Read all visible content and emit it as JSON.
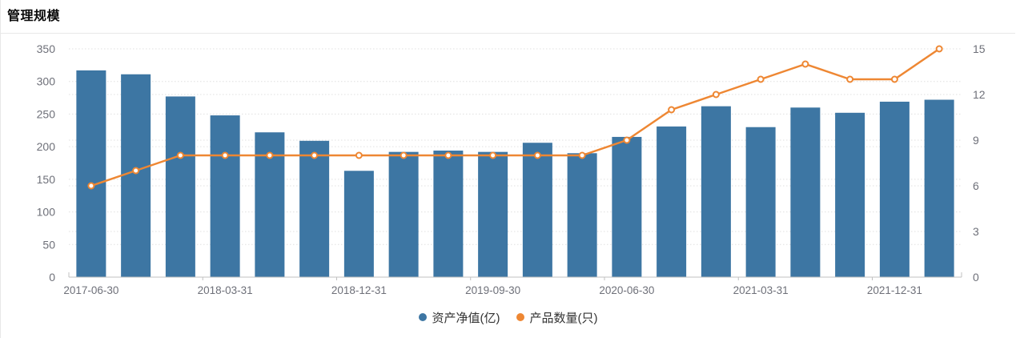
{
  "title": "管理规模",
  "colors": {
    "bar": "#3d76a3",
    "line": "#ee8733",
    "marker_core": "#ffffff",
    "grid": "#e0e0e0",
    "axis_line": "#c0c0c0",
    "tick_label": "#6e7079",
    "title_text": "#0a0a0a",
    "divider": "#e8e8e8",
    "legend_text": "#333333"
  },
  "legend": {
    "items": [
      {
        "label": "资产净值(亿)",
        "color": "#3d76a3",
        "icon": "circle-dot-icon"
      },
      {
        "label": "产品数量(只)",
        "color": "#ee8733",
        "icon": "circle-dot-icon"
      }
    ],
    "position": "bottom-center"
  },
  "chart_data": {
    "type": "bar",
    "subtype": "bar+line dual y-axis combo",
    "title": "管理规模",
    "categories": [
      "2017-06-30",
      "2017-09-30",
      "2017-12-31",
      "2018-03-31",
      "2018-06-30",
      "2018-09-30",
      "2018-12-31",
      "2019-03-31",
      "2019-06-30",
      "2019-09-30",
      "2019-12-31",
      "2020-03-31",
      "2020-06-30",
      "2020-09-30",
      "2020-12-31",
      "2021-03-31",
      "2021-06-30",
      "2021-09-30",
      "2021-12-31",
      "2022-03-31"
    ],
    "x_axis": {
      "visible_tick_labels": [
        "2017-06-30",
        "2018-03-31",
        "2018-12-31",
        "2019-09-30",
        "2020-06-30",
        "2021-03-31",
        "2021-12-31"
      ],
      "label_every_n_categories": 3
    },
    "series": [
      {
        "name": "资产净值(亿)",
        "type": "bar",
        "y_axis": "left",
        "color": "#3d76a3",
        "values": [
          317,
          311,
          277,
          248,
          222,
          209,
          163,
          192,
          194,
          192,
          206,
          190,
          215,
          231,
          262,
          230,
          260,
          252,
          269,
          272
        ]
      },
      {
        "name": "产品数量(只)",
        "type": "line",
        "y_axis": "right",
        "color": "#ee8733",
        "values": [
          6,
          7,
          8,
          8,
          8,
          8,
          8,
          8,
          8,
          8,
          8,
          8,
          9,
          11,
          12,
          13,
          14,
          13,
          13,
          15
        ]
      }
    ],
    "left_axis": {
      "min": 0,
      "max": 350,
      "tick_step": 50,
      "tick_labels": [
        "0",
        "50",
        "100",
        "150",
        "200",
        "250",
        "300",
        "350"
      ]
    },
    "right_axis": {
      "min": 0,
      "max": 15,
      "tick_step": 3,
      "tick_labels": [
        "0",
        "3",
        "6",
        "9",
        "12",
        "15"
      ]
    },
    "grid": "horizontal dotted gridlines from both y-axes",
    "legend_position": "bottom-center"
  }
}
